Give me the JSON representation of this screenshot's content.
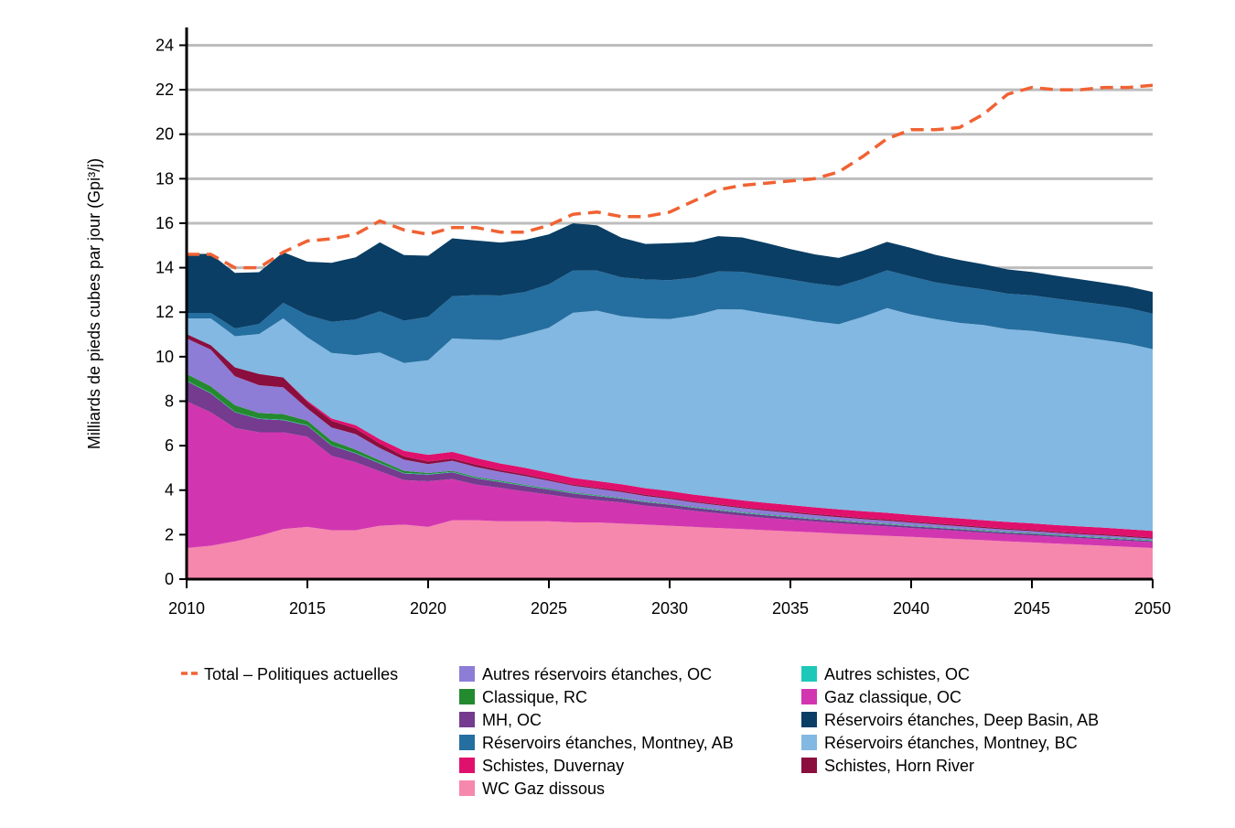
{
  "chart_data": {
    "type": "area",
    "stacked": true,
    "title": "",
    "ylabel": "Milliards de pieds cubes par jour (Gpi³/j)",
    "xlabel": "",
    "xlim": [
      2010,
      2050
    ],
    "ylim": [
      0,
      25
    ],
    "xticks": [
      "2010",
      "2015",
      "2020",
      "2025",
      "2030",
      "2035",
      "2040",
      "2045",
      "2050"
    ],
    "yticks": [
      "0",
      "2",
      "4",
      "6",
      "8",
      "10",
      "12",
      "14",
      "16",
      "18",
      "20",
      "22",
      "24"
    ],
    "grid": true,
    "x": [
      2010,
      2011,
      2012,
      2013,
      2014,
      2015,
      2016,
      2017,
      2018,
      2019,
      2020,
      2021,
      2022,
      2023,
      2024,
      2025,
      2026,
      2027,
      2028,
      2029,
      2030,
      2031,
      2032,
      2033,
      2034,
      2035,
      2036,
      2037,
      2038,
      2039,
      2040,
      2041,
      2042,
      2043,
      2044,
      2045,
      2046,
      2047,
      2048,
      2049,
      2050
    ],
    "series": [
      {
        "name": "WC Gaz dissous",
        "color": "#f687ad",
        "values": [
          1.4,
          1.5,
          1.7,
          1.95,
          2.25,
          2.35,
          2.2,
          2.2,
          2.4,
          2.45,
          2.35,
          2.65,
          2.65,
          2.6,
          2.6,
          2.6,
          2.55,
          2.55,
          2.5,
          2.45,
          2.4,
          2.35,
          2.3,
          2.25,
          2.2,
          2.15,
          2.1,
          2.05,
          2.0,
          1.95,
          1.9,
          1.85,
          1.8,
          1.75,
          1.7,
          1.65,
          1.6,
          1.55,
          1.5,
          1.45,
          1.4
        ]
      },
      {
        "name": "Gaz classique, OC",
        "color": "#d136b0",
        "values": [
          6.6,
          6.0,
          5.1,
          4.65,
          4.35,
          4.05,
          3.35,
          3.05,
          2.45,
          2.0,
          2.05,
          1.85,
          1.6,
          1.5,
          1.35,
          1.2,
          1.1,
          1.0,
          0.95,
          0.85,
          0.8,
          0.72,
          0.66,
          0.6,
          0.55,
          0.52,
          0.49,
          0.46,
          0.44,
          0.42,
          0.4,
          0.38,
          0.36,
          0.34,
          0.32,
          0.31,
          0.3,
          0.29,
          0.28,
          0.27,
          0.26
        ]
      },
      {
        "name": "MH, OC",
        "color": "#743b8e",
        "values": [
          0.9,
          0.85,
          0.7,
          0.6,
          0.55,
          0.5,
          0.45,
          0.4,
          0.35,
          0.3,
          0.3,
          0.3,
          0.28,
          0.26,
          0.24,
          0.22,
          0.2,
          0.18,
          0.17,
          0.16,
          0.15,
          0.14,
          0.13,
          0.12,
          0.12,
          0.11,
          0.1,
          0.1,
          0.09,
          0.09,
          0.08,
          0.08,
          0.08,
          0.07,
          0.07,
          0.07,
          0.06,
          0.06,
          0.06,
          0.06,
          0.05
        ]
      },
      {
        "name": "Autres schistes, OC",
        "color": "#1ec8b9",
        "values": [
          0.02,
          0.02,
          0.02,
          0.02,
          0.02,
          0.02,
          0.02,
          0.02,
          0.02,
          0.02,
          0.02,
          0.02,
          0.02,
          0.02,
          0.02,
          0.02,
          0.02,
          0.02,
          0.02,
          0.02,
          0.02,
          0.02,
          0.02,
          0.02,
          0.02,
          0.02,
          0.02,
          0.02,
          0.02,
          0.02,
          0.02,
          0.02,
          0.02,
          0.02,
          0.02,
          0.02,
          0.02,
          0.02,
          0.02,
          0.02,
          0.02
        ]
      },
      {
        "name": "Classique, RC",
        "color": "#248a2f",
        "values": [
          0.3,
          0.3,
          0.3,
          0.25,
          0.25,
          0.2,
          0.2,
          0.15,
          0.12,
          0.1,
          0.05,
          0.05,
          0.04,
          0.04,
          0.03,
          0.03,
          0.03,
          0.03,
          0.02,
          0.02,
          0.02,
          0.02,
          0.02,
          0.02,
          0.02,
          0.02,
          0.02,
          0.02,
          0.02,
          0.02,
          0.02,
          0.02,
          0.02,
          0.02,
          0.02,
          0.02,
          0.02,
          0.02,
          0.02,
          0.02,
          0.02
        ]
      },
      {
        "name": "Autres réservoirs étanches, OC",
        "color": "#8d7dd6",
        "values": [
          1.6,
          1.65,
          1.3,
          1.25,
          1.2,
          0.55,
          0.6,
          0.7,
          0.55,
          0.5,
          0.4,
          0.45,
          0.45,
          0.4,
          0.4,
          0.35,
          0.3,
          0.28,
          0.26,
          0.24,
          0.22,
          0.2,
          0.19,
          0.18,
          0.17,
          0.16,
          0.15,
          0.14,
          0.13,
          0.13,
          0.12,
          0.11,
          0.1,
          0.1,
          0.09,
          0.09,
          0.08,
          0.08,
          0.08,
          0.07,
          0.07
        ]
      },
      {
        "name": "Schistes, Horn River",
        "color": "#8a0e3e",
        "values": [
          0.2,
          0.2,
          0.4,
          0.5,
          0.45,
          0.3,
          0.3,
          0.25,
          0.2,
          0.15,
          0.12,
          0.1,
          0.1,
          0.08,
          0.07,
          0.06,
          0.05,
          0.05,
          0.05,
          0.05,
          0.05,
          0.05,
          0.05,
          0.05,
          0.05,
          0.05,
          0.05,
          0.05,
          0.05,
          0.05,
          0.05,
          0.05,
          0.05,
          0.05,
          0.05,
          0.05,
          0.05,
          0.05,
          0.05,
          0.05,
          0.05
        ]
      },
      {
        "name": "Schistes, Duvernay",
        "color": "#e0116c",
        "values": [
          0.0,
          0.0,
          0.0,
          0.0,
          0.0,
          0.05,
          0.1,
          0.15,
          0.2,
          0.25,
          0.3,
          0.3,
          0.3,
          0.3,
          0.3,
          0.3,
          0.3,
          0.3,
          0.3,
          0.3,
          0.3,
          0.3,
          0.3,
          0.3,
          0.3,
          0.3,
          0.3,
          0.3,
          0.3,
          0.3,
          0.3,
          0.3,
          0.3,
          0.3,
          0.3,
          0.3,
          0.3,
          0.3,
          0.3,
          0.3,
          0.3
        ]
      },
      {
        "name": "Réservoirs étanches, Montney, BC",
        "color": "#82b8e1",
        "values": [
          0.7,
          1.2,
          1.4,
          1.8,
          2.65,
          2.85,
          2.95,
          3.15,
          3.9,
          3.95,
          4.25,
          5.1,
          5.33,
          5.55,
          5.99,
          6.52,
          7.43,
          7.66,
          7.55,
          7.63,
          7.73,
          8.05,
          8.46,
          8.58,
          8.51,
          8.44,
          8.36,
          8.32,
          8.74,
          9.2,
          9.01,
          8.88,
          8.79,
          8.77,
          8.66,
          8.65,
          8.58,
          8.51,
          8.43,
          8.34,
          8.17
        ]
      },
      {
        "name": "Réservoirs étanches, Montney, AB",
        "color": "#256ea0",
        "values": [
          0.25,
          0.25,
          0.35,
          0.45,
          0.7,
          1.0,
          1.4,
          1.6,
          1.85,
          1.9,
          1.95,
          1.9,
          2.0,
          2.0,
          1.9,
          1.95,
          1.9,
          1.8,
          1.75,
          1.75,
          1.75,
          1.7,
          1.7,
          1.7,
          1.7,
          1.7,
          1.7,
          1.7,
          1.7,
          1.7,
          1.7,
          1.65,
          1.65,
          1.6,
          1.6,
          1.6,
          1.6,
          1.6,
          1.6,
          1.6,
          1.6
        ]
      },
      {
        "name": "Réservoirs étanches, Deep Basin, AB",
        "color": "#0a3e64",
        "values": [
          2.65,
          2.65,
          2.5,
          2.33,
          2.28,
          2.4,
          2.65,
          2.8,
          3.1,
          2.95,
          2.75,
          2.6,
          2.45,
          2.38,
          2.35,
          2.25,
          2.12,
          2.03,
          1.78,
          1.6,
          1.66,
          1.6,
          1.59,
          1.54,
          1.47,
          1.37,
          1.31,
          1.28,
          1.27,
          1.28,
          1.29,
          1.24,
          1.18,
          1.13,
          1.09,
          1.05,
          1.03,
          1.0,
          0.98,
          0.97,
          0.97
        ]
      }
    ],
    "total_line": {
      "name": "Total – Politiques actuelles",
      "color": "#f06233",
      "style": "dashed",
      "values": [
        14.6,
        14.6,
        14.0,
        14.0,
        14.7,
        15.2,
        15.3,
        15.5,
        16.1,
        15.7,
        15.5,
        15.8,
        15.8,
        15.6,
        15.6,
        15.9,
        16.4,
        16.5,
        16.3,
        16.3,
        16.5,
        17.0,
        17.5,
        17.7,
        17.8,
        17.9,
        18.0,
        18.3,
        19.0,
        19.8,
        20.2,
        20.2,
        20.3,
        20.9,
        21.8,
        22.1,
        22.0,
        22.0,
        22.1,
        22.1,
        22.2
      ]
    },
    "legend": {
      "placement": "bottom",
      "items": [
        {
          "label": "Total – Politiques actuelles",
          "color": "#f06233",
          "kind": "line"
        },
        {
          "label": "Autres réservoirs étanches, OC",
          "color": "#8d7dd6",
          "kind": "box"
        },
        {
          "label": "Autres schistes, OC",
          "color": "#1ec8b9",
          "kind": "box"
        },
        {
          "label": "Classique, RC",
          "color": "#248a2f",
          "kind": "box"
        },
        {
          "label": "Gaz classique, OC",
          "color": "#d136b0",
          "kind": "box"
        },
        {
          "label": "MH, OC",
          "color": "#743b8e",
          "kind": "box"
        },
        {
          "label": "Réservoirs étanches, Deep Basin, AB",
          "color": "#0a3e64",
          "kind": "box"
        },
        {
          "label": "Réservoirs étanches, Montney, AB",
          "color": "#256ea0",
          "kind": "box"
        },
        {
          "label": "Réservoirs étanches, Montney, BC",
          "color": "#82b8e1",
          "kind": "box"
        },
        {
          "label": "Schistes, Duvernay",
          "color": "#e0116c",
          "kind": "box"
        },
        {
          "label": "Schistes, Horn River",
          "color": "#8a0e3e",
          "kind": "box"
        },
        {
          "label": "WC Gaz dissous",
          "color": "#f687ad",
          "kind": "box"
        }
      ]
    }
  }
}
